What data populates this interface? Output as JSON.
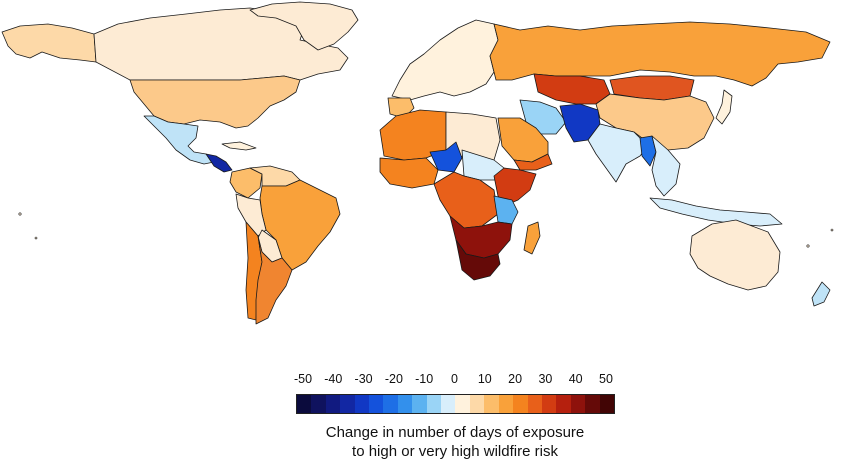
{
  "legend": {
    "ticks": [
      "-50",
      "-40",
      "-30",
      "-20",
      "-10",
      "0",
      "10",
      "20",
      "30",
      "40",
      "50"
    ],
    "caption_line1": "Change in number of days of exposure",
    "caption_line2": "to high or very high wildfire risk",
    "colors": [
      "#0b0b3d",
      "#0f125e",
      "#111a80",
      "#1227a3",
      "#1138c4",
      "#1452dc",
      "#1e6fe6",
      "#3390ec",
      "#5cb2f0",
      "#9ad4f6",
      "#d8eefb",
      "#fff2dd",
      "#fdd9a8",
      "#fcbd6a",
      "#f9a13a",
      "#f4831f",
      "#e8601a",
      "#d23c12",
      "#b5200e",
      "#8e120c",
      "#650a08",
      "#420505"
    ]
  },
  "regions": [
    {
      "id": "canada",
      "fill": "#fdebd4"
    },
    {
      "id": "greenland",
      "fill": "#fdebd4"
    },
    {
      "id": "alaska",
      "fill": "#fdd9a8"
    },
    {
      "id": "usa",
      "fill": "#fcc98a"
    },
    {
      "id": "mexico",
      "fill": "#bfe3f7"
    },
    {
      "id": "central-america",
      "fill": "#1227a3"
    },
    {
      "id": "cuba",
      "fill": "#fff2dd"
    },
    {
      "id": "colombia",
      "fill": "#fcbd6a"
    },
    {
      "id": "venezuela",
      "fill": "#fdd9a8"
    },
    {
      "id": "peru",
      "fill": "#fdebd4"
    },
    {
      "id": "brazil",
      "fill": "#f9a13a"
    },
    {
      "id": "bolivia",
      "fill": "#fdebd4"
    },
    {
      "id": "chile",
      "fill": "#f4831f"
    },
    {
      "id": "argentina",
      "fill": "#f08530"
    },
    {
      "id": "europe-west",
      "fill": "#fff2dd"
    },
    {
      "id": "iberia",
      "fill": "#fcbd6a"
    },
    {
      "id": "russia",
      "fill": "#f9a13a"
    },
    {
      "id": "kazakhstan",
      "fill": "#d23c12"
    },
    {
      "id": "mongolia",
      "fill": "#e05520"
    },
    {
      "id": "china",
      "fill": "#fcc98a"
    },
    {
      "id": "india",
      "fill": "#d8eefb"
    },
    {
      "id": "pakistan-afg",
      "fill": "#1138c4"
    },
    {
      "id": "iran",
      "fill": "#9ad4f6"
    },
    {
      "id": "arabia",
      "fill": "#f9a13a"
    },
    {
      "id": "yemen",
      "fill": "#e8601a"
    },
    {
      "id": "north-africa",
      "fill": "#f4831f"
    },
    {
      "id": "libya",
      "fill": "#fdebd4"
    },
    {
      "id": "chad",
      "fill": "#1452dc"
    },
    {
      "id": "sudan",
      "fill": "#d8eefb"
    },
    {
      "id": "west-africa",
      "fill": "#f4831f"
    },
    {
      "id": "central-africa",
      "fill": "#e8601a"
    },
    {
      "id": "east-africa",
      "fill": "#d23c12"
    },
    {
      "id": "tanzania",
      "fill": "#5cb2f0"
    },
    {
      "id": "southern-africa",
      "fill": "#8e120c"
    },
    {
      "id": "south-africa",
      "fill": "#650a08"
    },
    {
      "id": "madagascar",
      "fill": "#f9a13a"
    },
    {
      "id": "southeast-asia",
      "fill": "#d8eefb"
    },
    {
      "id": "myanmar",
      "fill": "#1e6fe6"
    },
    {
      "id": "indonesia",
      "fill": "#d8eefb"
    },
    {
      "id": "japan",
      "fill": "#fff2dd"
    },
    {
      "id": "australia",
      "fill": "#fdebd4"
    },
    {
      "id": "new-zealand",
      "fill": "#bfe3f7"
    }
  ]
}
